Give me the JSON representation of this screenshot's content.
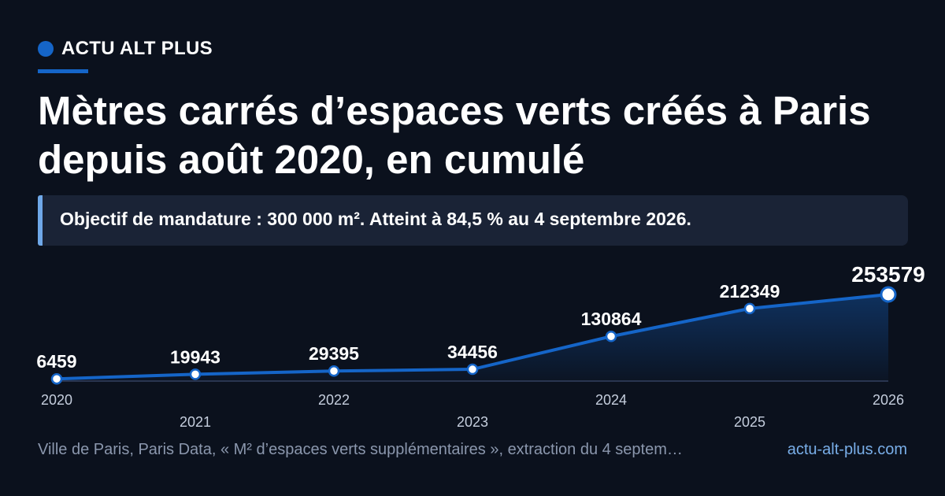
{
  "brand": {
    "name": "ACTU ALT PLUS"
  },
  "headline": "Mètres carrés d’espaces verts créés à Paris depuis août 2020, en cumulé",
  "callout": "Objectif de mandature : 300 000 m². Atteint à 84,5 % au 4 septembre 2026.",
  "footer": {
    "source": "Ville de Paris, Paris Data, « M² d’espaces verts supplémentaires », extraction du 4 septem…",
    "site": "actu-alt-plus.com"
  },
  "colors": {
    "background": "#0b111d",
    "accent": "#1565c8",
    "callout_bar": "#6fa8e8",
    "muted_text": "#8b97ad",
    "link": "#79aee8"
  },
  "chart_data": {
    "type": "area",
    "categories": [
      "2020",
      "2021",
      "2022",
      "2023",
      "2024",
      "2025",
      "2026"
    ],
    "values": [
      6459,
      19943,
      29395,
      34456,
      130864,
      212349,
      253579
    ],
    "data_labels": [
      "6459",
      "19943",
      "29395",
      "34456",
      "130864",
      "212349",
      "253579"
    ],
    "highlight_last": true,
    "ylim": [
      0,
      253579
    ],
    "grid": false,
    "legend": "none"
  }
}
